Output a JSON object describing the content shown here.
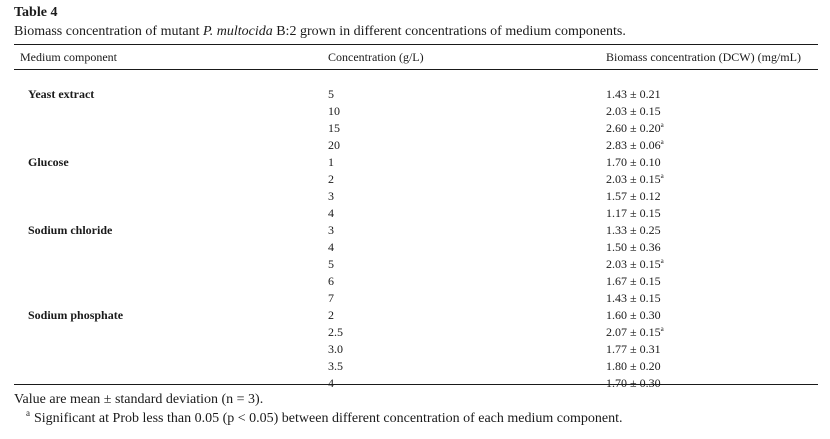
{
  "table": {
    "label": "Table 4",
    "caption_prefix": "Biomass concentration of mutant ",
    "caption_species": "P. multocida",
    "caption_suffix": " B:2 grown in different concentrations of medium components.",
    "headers": [
      "Medium component",
      "Concentration (g/L)",
      "Biomass concentration (DCW) (mg/mL)"
    ],
    "rows": [
      {
        "component": "Yeast extract",
        "concentration": "5",
        "biomass": "1.43 ± 0.21",
        "sig": ""
      },
      {
        "component": "",
        "concentration": "10",
        "biomass": "2.03 ± 0.15",
        "sig": ""
      },
      {
        "component": "",
        "concentration": "15",
        "biomass": "2.60 ± 0.20",
        "sig": "a"
      },
      {
        "component": "",
        "concentration": "20",
        "biomass": "2.83 ± 0.06",
        "sig": "a"
      },
      {
        "component": "Glucose",
        "concentration": "1",
        "biomass": "1.70 ± 0.10",
        "sig": ""
      },
      {
        "component": "",
        "concentration": "2",
        "biomass": "2.03 ± 0.15",
        "sig": "a"
      },
      {
        "component": "",
        "concentration": "3",
        "biomass": "1.57 ± 0.12",
        "sig": ""
      },
      {
        "component": "",
        "concentration": "4",
        "biomass": "1.17 ± 0.15",
        "sig": ""
      },
      {
        "component": "Sodium chloride",
        "concentration": "3",
        "biomass": "1.33 ± 0.25",
        "sig": ""
      },
      {
        "component": "",
        "concentration": "4",
        "biomass": "1.50 ± 0.36",
        "sig": ""
      },
      {
        "component": "",
        "concentration": "5",
        "biomass": "2.03 ± 0.15",
        "sig": "a"
      },
      {
        "component": "",
        "concentration": "6",
        "biomass": "1.67 ± 0.15",
        "sig": ""
      },
      {
        "component": "",
        "concentration": "7",
        "biomass": "1.43 ± 0.15",
        "sig": ""
      },
      {
        "component": "Sodium phosphate",
        "concentration": "2",
        "biomass": "1.60 ± 0.30",
        "sig": ""
      },
      {
        "component": "",
        "concentration": "2.5",
        "biomass": "2.07 ± 0.15",
        "sig": "a"
      },
      {
        "component": "",
        "concentration": "3.0",
        "biomass": "1.77 ± 0.31",
        "sig": ""
      },
      {
        "component": "",
        "concentration": "3.5",
        "biomass": "1.80 ± 0.20",
        "sig": ""
      },
      {
        "component": "",
        "concentration": "4",
        "biomass": "1.70 ± 0.30",
        "sig": ""
      }
    ]
  },
  "footnotes": {
    "note": "Value are mean ± standard deviation (n = 3).",
    "sig_marker": "a",
    "sig_text": "Significant at Prob less than 0.05 (p < 0.05) between different concentration of each medium component."
  }
}
